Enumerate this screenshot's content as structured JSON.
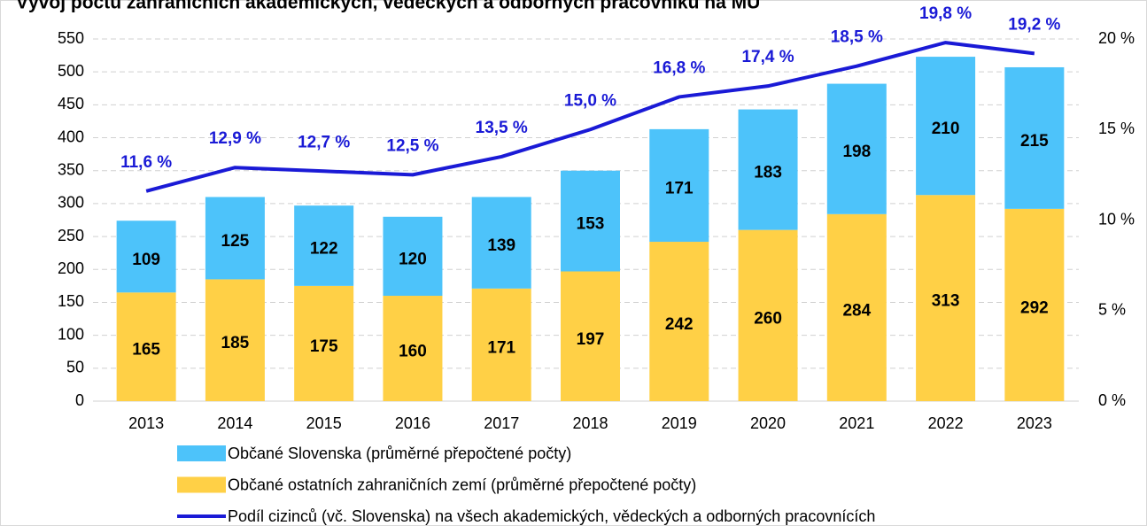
{
  "chart_data": {
    "type": "bar",
    "title": "Vývoj počtu zahraničních akademických, vědeckých a odborných pracovníků na MU",
    "categories": [
      "2013",
      "2014",
      "2015",
      "2016",
      "2017",
      "2018",
      "2019",
      "2020",
      "2021",
      "2022",
      "2023"
    ],
    "stacked": true,
    "series": [
      {
        "name": "Občané Slovenska (průměrné přepočtené počty)",
        "color": "#4dc3fa",
        "type": "bar",
        "values": [
          109,
          125,
          122,
          120,
          139,
          153,
          171,
          183,
          198,
          210,
          215
        ]
      },
      {
        "name": "Občané ostatních zahraničních zemí (průměrné přepočtené počty)",
        "color": "#ffd046",
        "type": "bar",
        "values": [
          165,
          185,
          175,
          160,
          171,
          197,
          242,
          260,
          284,
          313,
          292
        ]
      },
      {
        "name": "Podíl cizinců (vč. Slovenska) na všech akademických, vědeckých a odborných pracovnících",
        "color": "#1a1ad6",
        "type": "line",
        "axis": "y2",
        "values": [
          11.6,
          12.9,
          12.7,
          12.5,
          13.5,
          15.0,
          16.8,
          17.4,
          18.5,
          19.8,
          19.2
        ],
        "value_labels": [
          "11,6 %",
          "12,9 %",
          "12,7 %",
          "12,5 %",
          "13,5 %",
          "15,0 %",
          "16,8 %",
          "17,4 %",
          "18,5 %",
          "19,8 %",
          "19,2 %"
        ]
      }
    ],
    "ylim": [
      0,
      550
    ],
    "yticks": [
      0,
      50,
      100,
      150,
      200,
      250,
      300,
      350,
      400,
      450,
      500,
      550
    ],
    "y2lim": [
      0,
      20
    ],
    "y2ticks": [
      {
        "value": 0,
        "label": "0 %"
      },
      {
        "value": 5,
        "label": "5 %"
      },
      {
        "value": 10,
        "label": "10 %"
      },
      {
        "value": 15,
        "label": "15 %"
      },
      {
        "value": 20,
        "label": "20 %"
      }
    ],
    "grid": true,
    "legend": "bottom"
  }
}
